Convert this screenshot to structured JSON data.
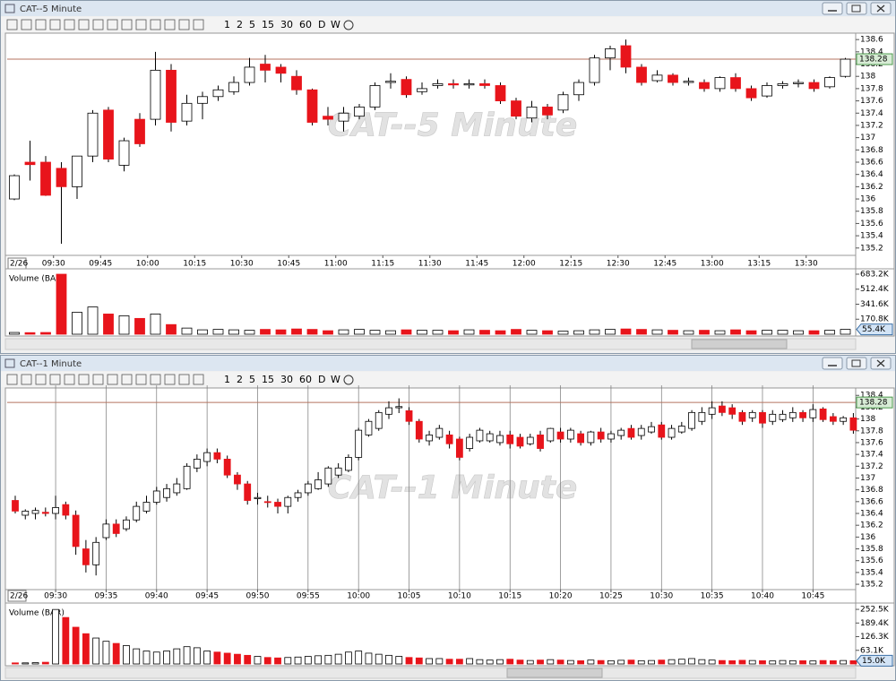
{
  "chart_data": [
    {
      "type": "candlestick",
      "title": "CAT--5 Minute",
      "toolbar": [
        "1",
        "2",
        "5",
        "15",
        "30",
        "60",
        "D",
        "W"
      ],
      "date_label": "2/26",
      "up_color": "#ffffff",
      "down_color": "#e8141b",
      "price_line_color": "#b5735f",
      "last_price": 138.28,
      "vgrid": false,
      "ylim": [
        135.08,
        138.69
      ],
      "yticks": [
        138.6,
        138.4,
        138.2,
        138,
        137.8,
        137.6,
        137.4,
        137.2,
        137,
        136.8,
        136.6,
        136.4,
        136.2,
        136,
        135.8,
        135.6,
        135.4,
        135.2
      ],
      "xticks": [
        {
          "value": 2.5,
          "label": "09:30"
        },
        {
          "value": 5.5,
          "label": "09:45"
        },
        {
          "value": 8.5,
          "label": "10:00"
        },
        {
          "value": 11.5,
          "label": "10:15"
        },
        {
          "value": 14.5,
          "label": "10:30"
        },
        {
          "value": 17.5,
          "label": "10:45"
        },
        {
          "value": 20.5,
          "label": "11:00"
        },
        {
          "value": 23.5,
          "label": "11:15"
        },
        {
          "value": 26.5,
          "label": "11:30"
        },
        {
          "value": 29.5,
          "label": "11:45"
        },
        {
          "value": 32.5,
          "label": "12:00"
        },
        {
          "value": 35.5,
          "label": "12:15"
        },
        {
          "value": 38.5,
          "label": "12:30"
        },
        {
          "value": 41.5,
          "label": "12:45"
        },
        {
          "value": 44.5,
          "label": "13:00"
        },
        {
          "value": 47.5,
          "label": "13:15"
        },
        {
          "value": 50.5,
          "label": "13:30"
        }
      ],
      "ohlc": [
        [
          136.0,
          136.4,
          135.98,
          136.38
        ],
        [
          136.6,
          136.95,
          136.3,
          136.56
        ],
        [
          136.6,
          136.7,
          136.05,
          136.06
        ],
        [
          136.5,
          136.6,
          135.27,
          136.2
        ],
        [
          136.2,
          136.7,
          136.0,
          136.7
        ],
        [
          136.7,
          137.45,
          136.6,
          137.4
        ],
        [
          137.45,
          137.5,
          136.6,
          136.65
        ],
        [
          136.55,
          137.0,
          136.45,
          136.95
        ],
        [
          137.3,
          137.4,
          136.85,
          136.9
        ],
        [
          137.3,
          138.4,
          137.2,
          138.1
        ],
        [
          138.1,
          138.2,
          137.1,
          137.25
        ],
        [
          137.27,
          137.7,
          137.2,
          137.56
        ],
        [
          137.56,
          137.75,
          137.3,
          137.67
        ],
        [
          137.67,
          137.85,
          137.6,
          137.78
        ],
        [
          137.75,
          138.0,
          137.7,
          137.9
        ],
        [
          137.9,
          138.3,
          137.85,
          138.15
        ],
        [
          138.2,
          138.35,
          137.9,
          138.1
        ],
        [
          138.15,
          138.2,
          137.9,
          138.05
        ],
        [
          138.0,
          138.1,
          137.7,
          137.78
        ],
        [
          137.78,
          137.8,
          137.2,
          137.25
        ],
        [
          137.35,
          137.5,
          137.2,
          137.3
        ],
        [
          137.27,
          137.5,
          137.1,
          137.4
        ],
        [
          137.35,
          137.55,
          137.3,
          137.5
        ],
        [
          137.5,
          137.9,
          137.45,
          137.85
        ],
        [
          137.9,
          138.05,
          137.8,
          137.92
        ],
        [
          137.95,
          138.0,
          137.65,
          137.7
        ],
        [
          137.75,
          137.9,
          137.7,
          137.8
        ],
        [
          137.85,
          137.95,
          137.8,
          137.88
        ],
        [
          137.88,
          137.95,
          137.8,
          137.86
        ],
        [
          137.86,
          137.95,
          137.8,
          137.88
        ],
        [
          137.88,
          137.95,
          137.8,
          137.85
        ],
        [
          137.85,
          137.9,
          137.55,
          137.6
        ],
        [
          137.6,
          137.65,
          137.3,
          137.35
        ],
        [
          137.32,
          137.6,
          137.25,
          137.5
        ],
        [
          137.5,
          137.55,
          137.3,
          137.37
        ],
        [
          137.45,
          137.75,
          137.4,
          137.7
        ],
        [
          137.7,
          137.95,
          137.6,
          137.9
        ],
        [
          137.9,
          138.35,
          137.85,
          138.3
        ],
        [
          138.3,
          138.5,
          138.1,
          138.45
        ],
        [
          138.5,
          138.6,
          138.05,
          138.15
        ],
        [
          138.15,
          138.2,
          137.85,
          137.9
        ],
        [
          137.93,
          138.1,
          137.9,
          138.02
        ],
        [
          138.02,
          138.05,
          137.85,
          137.9
        ],
        [
          137.9,
          137.98,
          137.85,
          137.92
        ],
        [
          137.9,
          137.95,
          137.75,
          137.8
        ],
        [
          137.8,
          138.0,
          137.75,
          137.98
        ],
        [
          137.98,
          138.05,
          137.75,
          137.8
        ],
        [
          137.8,
          137.85,
          137.6,
          137.65
        ],
        [
          137.68,
          137.9,
          137.65,
          137.85
        ],
        [
          137.85,
          137.92,
          137.8,
          137.88
        ],
        [
          137.88,
          137.95,
          137.82,
          137.9
        ],
        [
          137.9,
          137.95,
          137.75,
          137.8
        ],
        [
          137.83,
          138.0,
          137.8,
          137.98
        ],
        [
          138.0,
          138.3,
          137.98,
          138.28
        ]
      ],
      "volume": {
        "label": "Volume (BAR)",
        "ylim": [
          0,
          713700
        ],
        "yticks": [
          {
            "value": 683200,
            "label": "683.2K"
          },
          {
            "value": 512400,
            "label": "512.4K"
          },
          {
            "value": 341600,
            "label": "341.6K"
          },
          {
            "value": 170800,
            "label": "170.8K"
          }
        ],
        "values": [
          20000,
          18000,
          20000,
          683000,
          250000,
          310000,
          230000,
          210000,
          180000,
          230000,
          110000,
          70000,
          50000,
          55000,
          50000,
          45000,
          55000,
          50000,
          60000,
          55000,
          40000,
          50000,
          55000,
          45000,
          40000,
          50000,
          45000,
          45000,
          40000,
          50000,
          45000,
          40000,
          55000,
          45000,
          40000,
          35000,
          40000,
          50000,
          55000,
          60000,
          55000,
          50000,
          45000,
          40000,
          45000,
          40000,
          50000,
          40000,
          45000,
          45000,
          40000,
          40000,
          45000,
          55400
        ],
        "last": {
          "value": 55400,
          "label": "55.4K"
        }
      }
    },
    {
      "type": "candlestick",
      "title": "CAT--1 Minute",
      "toolbar": [
        "1",
        "2",
        "5",
        "15",
        "30",
        "60",
        "D",
        "W"
      ],
      "date_label": "2/26",
      "up_color": "#ffffff",
      "down_color": "#e8141b",
      "price_line_color": "#b5735f",
      "last_price": 138.28,
      "vgrid": true,
      "ylim": [
        135.11,
        138.51
      ],
      "yticks": [
        138.4,
        138.2,
        138,
        137.8,
        137.6,
        137.4,
        137.2,
        137,
        136.8,
        136.6,
        136.4,
        136.2,
        136,
        135.8,
        135.6,
        135.4,
        135.2
      ],
      "xticks": [
        {
          "value": 4,
          "label": "09:30"
        },
        {
          "value": 9,
          "label": "09:35"
        },
        {
          "value": 14,
          "label": "09:40"
        },
        {
          "value": 19,
          "label": "09:45"
        },
        {
          "value": 24,
          "label": "09:50"
        },
        {
          "value": 29,
          "label": "09:55"
        },
        {
          "value": 34,
          "label": "10:00"
        },
        {
          "value": 39,
          "label": "10:05"
        },
        {
          "value": 44,
          "label": "10:10"
        },
        {
          "value": 49,
          "label": "10:15"
        },
        {
          "value": 54,
          "label": "10:20"
        },
        {
          "value": 59,
          "label": "10:25"
        },
        {
          "value": 64,
          "label": "10:30"
        },
        {
          "value": 69,
          "label": "10:35"
        },
        {
          "value": 74,
          "label": "10:40"
        },
        {
          "value": 79,
          "label": "10:45"
        }
      ],
      "ohlc": [
        [
          136.62,
          136.7,
          136.4,
          136.44
        ],
        [
          136.37,
          136.47,
          136.3,
          136.44
        ],
        [
          136.4,
          136.5,
          136.3,
          136.45
        ],
        [
          136.42,
          136.5,
          136.35,
          136.4
        ],
        [
          136.4,
          136.7,
          136.3,
          136.5
        ],
        [
          136.55,
          136.6,
          136.3,
          136.37
        ],
        [
          136.37,
          136.45,
          135.7,
          135.84
        ],
        [
          135.8,
          135.95,
          135.4,
          135.53
        ],
        [
          135.53,
          136.0,
          135.35,
          135.91
        ],
        [
          135.99,
          136.3,
          135.95,
          136.22
        ],
        [
          136.22,
          136.3,
          136.0,
          136.06
        ],
        [
          136.14,
          136.35,
          136.1,
          136.29
        ],
        [
          136.29,
          136.6,
          136.25,
          136.52
        ],
        [
          136.44,
          136.7,
          136.4,
          136.59
        ],
        [
          136.59,
          136.85,
          136.55,
          136.78
        ],
        [
          136.67,
          136.9,
          136.6,
          136.82
        ],
        [
          136.75,
          137.0,
          136.7,
          136.9
        ],
        [
          136.82,
          137.25,
          136.8,
          137.2
        ],
        [
          137.17,
          137.4,
          137.1,
          137.32
        ],
        [
          137.28,
          137.5,
          137.2,
          137.43
        ],
        [
          137.43,
          137.5,
          137.25,
          137.32
        ],
        [
          137.32,
          137.38,
          137.0,
          137.05
        ],
        [
          137.05,
          137.1,
          136.8,
          136.9
        ],
        [
          136.9,
          136.95,
          136.55,
          136.62
        ],
        [
          136.65,
          136.75,
          136.55,
          136.67
        ],
        [
          136.6,
          136.7,
          136.5,
          136.59
        ],
        [
          136.59,
          136.65,
          136.4,
          136.52
        ],
        [
          136.52,
          136.7,
          136.4,
          136.67
        ],
        [
          136.67,
          136.8,
          136.6,
          136.75
        ],
        [
          136.75,
          136.95,
          136.7,
          136.9
        ],
        [
          136.82,
          137.1,
          136.8,
          136.97
        ],
        [
          136.9,
          137.2,
          136.85,
          137.17
        ],
        [
          137.05,
          137.25,
          137.0,
          137.17
        ],
        [
          137.13,
          137.4,
          137.1,
          137.35
        ],
        [
          137.35,
          137.85,
          137.3,
          137.81
        ],
        [
          137.73,
          138.0,
          137.7,
          137.96
        ],
        [
          137.84,
          138.15,
          137.8,
          138.11
        ],
        [
          138.08,
          138.3,
          138.0,
          138.19
        ],
        [
          138.19,
          138.35,
          138.1,
          138.21
        ],
        [
          138.14,
          138.2,
          137.9,
          137.96
        ],
        [
          137.96,
          138.0,
          137.6,
          137.66
        ],
        [
          137.63,
          137.8,
          137.55,
          137.73
        ],
        [
          137.69,
          137.9,
          137.65,
          137.84
        ],
        [
          137.73,
          137.8,
          137.5,
          137.58
        ],
        [
          137.66,
          137.7,
          137.3,
          137.35
        ],
        [
          137.5,
          137.75,
          137.45,
          137.69
        ],
        [
          137.63,
          137.85,
          137.6,
          137.81
        ],
        [
          137.63,
          137.8,
          137.6,
          137.75
        ],
        [
          137.6,
          137.8,
          137.55,
          137.72
        ],
        [
          137.73,
          137.8,
          137.5,
          137.58
        ],
        [
          137.69,
          137.75,
          137.5,
          137.54
        ],
        [
          137.58,
          137.75,
          137.55,
          137.69
        ],
        [
          137.73,
          137.8,
          137.45,
          137.5
        ],
        [
          137.63,
          137.85,
          137.6,
          137.84
        ],
        [
          137.78,
          137.85,
          137.6,
          137.66
        ],
        [
          137.66,
          137.85,
          137.6,
          137.81
        ],
        [
          137.75,
          137.8,
          137.55,
          137.6
        ],
        [
          137.6,
          137.8,
          137.55,
          137.78
        ],
        [
          137.78,
          137.85,
          137.6,
          137.66
        ],
        [
          137.66,
          137.8,
          137.6,
          137.75
        ],
        [
          137.72,
          137.85,
          137.65,
          137.81
        ],
        [
          137.84,
          137.9,
          137.65,
          137.69
        ],
        [
          137.72,
          137.9,
          137.65,
          137.84
        ],
        [
          137.78,
          137.95,
          137.75,
          137.87
        ],
        [
          137.9,
          137.95,
          137.65,
          137.69
        ],
        [
          137.69,
          137.9,
          137.65,
          137.84
        ],
        [
          137.78,
          137.95,
          137.75,
          137.88
        ],
        [
          137.84,
          138.15,
          137.8,
          138.11
        ],
        [
          137.96,
          138.2,
          137.9,
          138.11
        ],
        [
          138.08,
          138.3,
          138.0,
          138.19
        ],
        [
          138.22,
          138.3,
          138.05,
          138.11
        ],
        [
          138.19,
          138.25,
          138.0,
          138.08
        ],
        [
          138.11,
          138.15,
          137.9,
          137.96
        ],
        [
          138.02,
          138.15,
          137.95,
          138.11
        ],
        [
          138.11,
          138.15,
          137.85,
          137.93
        ],
        [
          137.96,
          138.15,
          137.9,
          138.08
        ],
        [
          137.99,
          138.15,
          137.95,
          138.08
        ],
        [
          138.02,
          138.2,
          137.95,
          138.11
        ],
        [
          138.11,
          138.15,
          137.95,
          138.02
        ],
        [
          138.02,
          138.25,
          137.95,
          138.16
        ],
        [
          138.17,
          138.2,
          137.95,
          137.99
        ],
        [
          138.04,
          138.1,
          137.9,
          137.96
        ],
        [
          137.96,
          138.05,
          137.9,
          138.02
        ],
        [
          138.02,
          138.1,
          137.75,
          137.81
        ]
      ],
      "volume": {
        "label": "Volume (BAR)",
        "ylim": [
          0,
          269300
        ],
        "yticks": [
          {
            "value": 252500,
            "label": "252.5K"
          },
          {
            "value": 189400,
            "label": "189.4K"
          },
          {
            "value": 126300,
            "label": "126.3K"
          },
          {
            "value": 63100,
            "label": "63.1K"
          }
        ],
        "values": [
          5000,
          5000,
          6000,
          8000,
          252000,
          215000,
          170000,
          140000,
          120000,
          105000,
          95000,
          85000,
          70000,
          60000,
          55000,
          60000,
          70000,
          80000,
          75000,
          60000,
          55000,
          50000,
          45000,
          40000,
          35000,
          30000,
          28000,
          30000,
          32000,
          35000,
          38000,
          40000,
          45000,
          55000,
          60000,
          50000,
          45000,
          40000,
          35000,
          30000,
          28000,
          25000,
          25000,
          22000,
          22000,
          25000,
          20000,
          18000,
          20000,
          22000,
          18000,
          16000,
          18000,
          20000,
          18000,
          16000,
          15000,
          18000,
          16000,
          15000,
          17000,
          18000,
          15000,
          16000,
          18000,
          20000,
          22000,
          25000,
          20000,
          18000,
          16000,
          15000,
          17000,
          16000,
          15000,
          14000,
          16000,
          15000,
          15000,
          14000,
          16000,
          15000,
          16000,
          15000
        ],
        "last": {
          "value": 15000,
          "label": "15.0K"
        }
      }
    }
  ]
}
